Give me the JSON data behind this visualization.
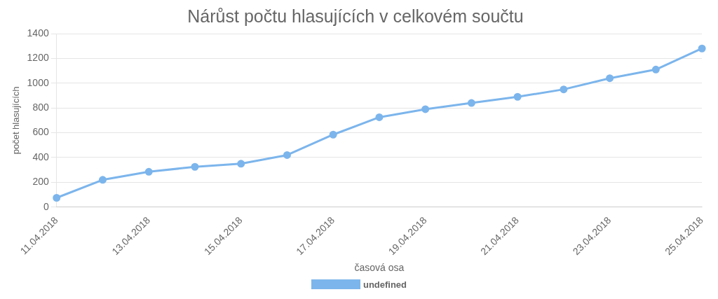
{
  "chart_data": {
    "type": "line",
    "title": "Nárůst počtu hlasujících v celkovém součtu",
    "xlabel": "časová osa",
    "ylabel": "počet hlasujících",
    "categories": [
      "11.04.2018",
      null,
      "13.04.2018",
      null,
      "15.04.2018",
      null,
      "17.04.2018",
      null,
      "19.04.2018",
      null,
      "21.04.2018",
      null,
      "23.04.2018",
      null,
      "25.04.2018"
    ],
    "series": [
      {
        "name": "undefined",
        "color": "#7cb5ec",
        "values": [
          75,
          220,
          285,
          325,
          350,
          420,
          585,
          725,
          790,
          840,
          890,
          950,
          1040,
          1110,
          1280
        ]
      }
    ],
    "ylim": [
      0,
      1400
    ],
    "yticks": [
      0,
      200,
      400,
      600,
      800,
      1000,
      1200,
      1400
    ],
    "grid": "y",
    "legend": "bottom",
    "marker": "circle"
  }
}
